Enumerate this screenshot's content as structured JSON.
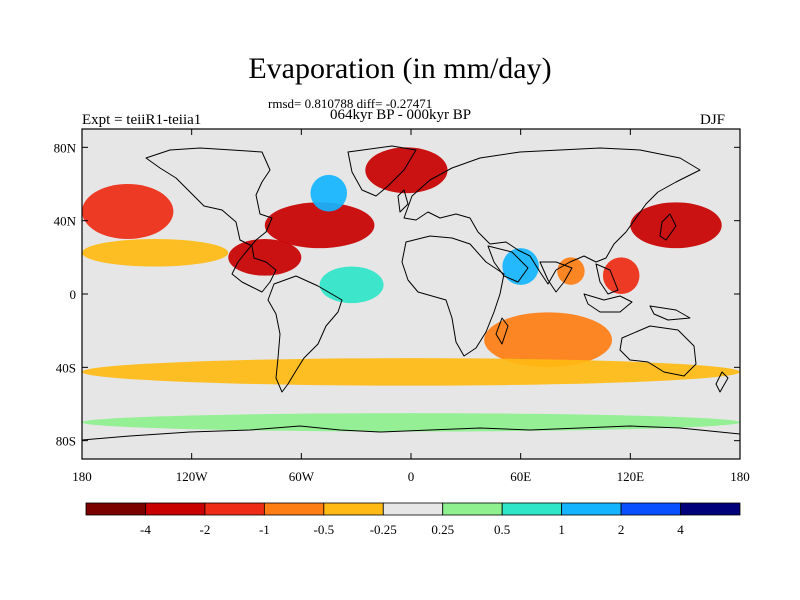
{
  "title": "Evaporation (in mm/day)",
  "stats_line": "rmsd= 0.810788 diff= -0.27471",
  "period_line": "064kyr BP - 000kyr BP",
  "expt_label": "Expt = teiiR1-teiia1",
  "season_label": "DJF",
  "chart_data": {
    "type": "heatmap",
    "variable": "Evaporation (in mm/day)",
    "x_axis": {
      "range": [
        -180,
        180
      ],
      "ticks": [
        -180,
        -120,
        -60,
        0,
        60,
        120,
        180
      ],
      "tick_labels": [
        "180",
        "120W",
        "60W",
        "0",
        "60E",
        "120E",
        "180"
      ]
    },
    "y_axis": {
      "range": [
        -90,
        90
      ],
      "ticks": [
        80,
        40,
        0,
        -40,
        -80
      ],
      "tick_labels": [
        "80N",
        "40N",
        "0",
        "40S",
        "80S"
      ]
    },
    "colorbar": {
      "levels": [
        -4,
        -2,
        -1,
        -0.5,
        -0.25,
        0.25,
        0.5,
        1,
        2,
        4
      ],
      "labels": [
        "-4",
        "-2",
        "-1",
        "-0.5",
        "-0.25",
        "0.25",
        "0.5",
        "1",
        "2",
        "4"
      ],
      "colors": [
        "#7a0000",
        "#c80000",
        "#ee2b14",
        "#ff7e14",
        "#ffbb14",
        "#e6e6e6",
        "#8ef08e",
        "#2fe6c9",
        "#14b4ff",
        "#0a50ff",
        "#00007a"
      ]
    },
    "regions": [
      {
        "name": "north-atlantic-gulf-stream",
        "lon": [
          -80,
          -20
        ],
        "lat": [
          25,
          50
        ],
        "value": -3
      },
      {
        "name": "greenland-nordic-seas",
        "lon": [
          -25,
          20
        ],
        "lat": [
          55,
          80
        ],
        "value": -2.5
      },
      {
        "name": "labrador-sea",
        "lon": [
          -55,
          -35
        ],
        "lat": [
          45,
          65
        ],
        "value": 1.5
      },
      {
        "name": "kuroshio",
        "lon": [
          120,
          170
        ],
        "lat": [
          25,
          50
        ],
        "value": -3
      },
      {
        "name": "north-pacific-east",
        "lon": [
          -180,
          -130
        ],
        "lat": [
          30,
          60
        ],
        "value": -1.5
      },
      {
        "name": "north-pacific-band",
        "lon": [
          -180,
          -100
        ],
        "lat": [
          15,
          30
        ],
        "value": -0.5
      },
      {
        "name": "gulf-of-mexico-caribbean",
        "lon": [
          -100,
          -60
        ],
        "lat": [
          10,
          30
        ],
        "value": -2.5
      },
      {
        "name": "tropical-atlantic",
        "lon": [
          -50,
          -15
        ],
        "lat": [
          -5,
          15
        ],
        "value": 0.75
      },
      {
        "name": "south-indian-ocean",
        "lon": [
          40,
          110
        ],
        "lat": [
          -40,
          -10
        ],
        "value": -0.75
      },
      {
        "name": "southern-ocean-band",
        "lon": [
          -180,
          180
        ],
        "lat": [
          -50,
          -35
        ],
        "value": -0.4
      },
      {
        "name": "arabian-sea",
        "lon": [
          50,
          70
        ],
        "lat": [
          5,
          25
        ],
        "value": 1.5
      },
      {
        "name": "bay-of-bengal",
        "lon": [
          80,
          95
        ],
        "lat": [
          5,
          20
        ],
        "value": -0.75
      },
      {
        "name": "south-china-sea",
        "lon": [
          105,
          125
        ],
        "lat": [
          0,
          20
        ],
        "value": -2
      },
      {
        "name": "antarctic-coast",
        "lon": [
          -180,
          180
        ],
        "lat": [
          -75,
          -65
        ],
        "value": 0.4
      }
    ]
  }
}
